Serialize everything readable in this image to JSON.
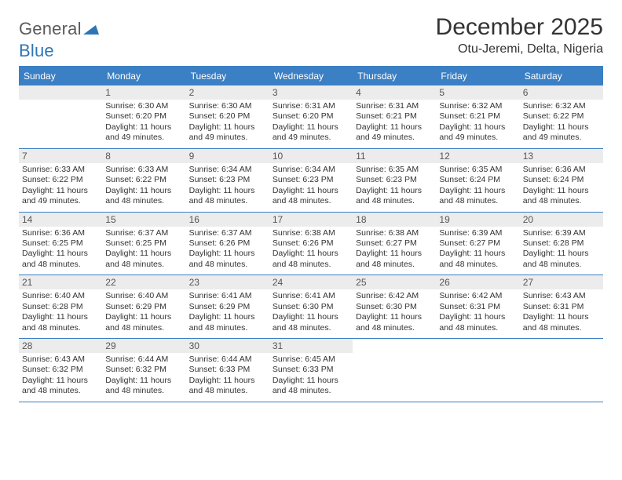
{
  "logo": {
    "word1": "General",
    "word2": "Blue"
  },
  "title": "December 2025",
  "location": "Otu-Jeremi, Delta, Nigeria",
  "colors": {
    "header_bg": "#3b7fc4",
    "header_text": "#ffffff",
    "rule": "#3b7fc4",
    "daynum_bg": "#ececec",
    "body_text": "#333333",
    "logo_gray": "#5a5a5a",
    "logo_blue": "#2e75b6",
    "page_bg": "#ffffff"
  },
  "typography": {
    "title_fontsize": 30,
    "location_fontsize": 16,
    "dow_fontsize": 12,
    "daynum_fontsize": 12,
    "body_fontsize": 10.5
  },
  "layout": {
    "columns": 7,
    "rows": 5
  },
  "days_of_week": [
    "Sunday",
    "Monday",
    "Tuesday",
    "Wednesday",
    "Thursday",
    "Friday",
    "Saturday"
  ],
  "weeks": [
    [
      {
        "n": "",
        "sunrise": "",
        "sunset": "",
        "daylight": ""
      },
      {
        "n": "1",
        "sunrise": "Sunrise: 6:30 AM",
        "sunset": "Sunset: 6:20 PM",
        "daylight": "Daylight: 11 hours and 49 minutes."
      },
      {
        "n": "2",
        "sunrise": "Sunrise: 6:30 AM",
        "sunset": "Sunset: 6:20 PM",
        "daylight": "Daylight: 11 hours and 49 minutes."
      },
      {
        "n": "3",
        "sunrise": "Sunrise: 6:31 AM",
        "sunset": "Sunset: 6:20 PM",
        "daylight": "Daylight: 11 hours and 49 minutes."
      },
      {
        "n": "4",
        "sunrise": "Sunrise: 6:31 AM",
        "sunset": "Sunset: 6:21 PM",
        "daylight": "Daylight: 11 hours and 49 minutes."
      },
      {
        "n": "5",
        "sunrise": "Sunrise: 6:32 AM",
        "sunset": "Sunset: 6:21 PM",
        "daylight": "Daylight: 11 hours and 49 minutes."
      },
      {
        "n": "6",
        "sunrise": "Sunrise: 6:32 AM",
        "sunset": "Sunset: 6:22 PM",
        "daylight": "Daylight: 11 hours and 49 minutes."
      }
    ],
    [
      {
        "n": "7",
        "sunrise": "Sunrise: 6:33 AM",
        "sunset": "Sunset: 6:22 PM",
        "daylight": "Daylight: 11 hours and 49 minutes."
      },
      {
        "n": "8",
        "sunrise": "Sunrise: 6:33 AM",
        "sunset": "Sunset: 6:22 PM",
        "daylight": "Daylight: 11 hours and 48 minutes."
      },
      {
        "n": "9",
        "sunrise": "Sunrise: 6:34 AM",
        "sunset": "Sunset: 6:23 PM",
        "daylight": "Daylight: 11 hours and 48 minutes."
      },
      {
        "n": "10",
        "sunrise": "Sunrise: 6:34 AM",
        "sunset": "Sunset: 6:23 PM",
        "daylight": "Daylight: 11 hours and 48 minutes."
      },
      {
        "n": "11",
        "sunrise": "Sunrise: 6:35 AM",
        "sunset": "Sunset: 6:23 PM",
        "daylight": "Daylight: 11 hours and 48 minutes."
      },
      {
        "n": "12",
        "sunrise": "Sunrise: 6:35 AM",
        "sunset": "Sunset: 6:24 PM",
        "daylight": "Daylight: 11 hours and 48 minutes."
      },
      {
        "n": "13",
        "sunrise": "Sunrise: 6:36 AM",
        "sunset": "Sunset: 6:24 PM",
        "daylight": "Daylight: 11 hours and 48 minutes."
      }
    ],
    [
      {
        "n": "14",
        "sunrise": "Sunrise: 6:36 AM",
        "sunset": "Sunset: 6:25 PM",
        "daylight": "Daylight: 11 hours and 48 minutes."
      },
      {
        "n": "15",
        "sunrise": "Sunrise: 6:37 AM",
        "sunset": "Sunset: 6:25 PM",
        "daylight": "Daylight: 11 hours and 48 minutes."
      },
      {
        "n": "16",
        "sunrise": "Sunrise: 6:37 AM",
        "sunset": "Sunset: 6:26 PM",
        "daylight": "Daylight: 11 hours and 48 minutes."
      },
      {
        "n": "17",
        "sunrise": "Sunrise: 6:38 AM",
        "sunset": "Sunset: 6:26 PM",
        "daylight": "Daylight: 11 hours and 48 minutes."
      },
      {
        "n": "18",
        "sunrise": "Sunrise: 6:38 AM",
        "sunset": "Sunset: 6:27 PM",
        "daylight": "Daylight: 11 hours and 48 minutes."
      },
      {
        "n": "19",
        "sunrise": "Sunrise: 6:39 AM",
        "sunset": "Sunset: 6:27 PM",
        "daylight": "Daylight: 11 hours and 48 minutes."
      },
      {
        "n": "20",
        "sunrise": "Sunrise: 6:39 AM",
        "sunset": "Sunset: 6:28 PM",
        "daylight": "Daylight: 11 hours and 48 minutes."
      }
    ],
    [
      {
        "n": "21",
        "sunrise": "Sunrise: 6:40 AM",
        "sunset": "Sunset: 6:28 PM",
        "daylight": "Daylight: 11 hours and 48 minutes."
      },
      {
        "n": "22",
        "sunrise": "Sunrise: 6:40 AM",
        "sunset": "Sunset: 6:29 PM",
        "daylight": "Daylight: 11 hours and 48 minutes."
      },
      {
        "n": "23",
        "sunrise": "Sunrise: 6:41 AM",
        "sunset": "Sunset: 6:29 PM",
        "daylight": "Daylight: 11 hours and 48 minutes."
      },
      {
        "n": "24",
        "sunrise": "Sunrise: 6:41 AM",
        "sunset": "Sunset: 6:30 PM",
        "daylight": "Daylight: 11 hours and 48 minutes."
      },
      {
        "n": "25",
        "sunrise": "Sunrise: 6:42 AM",
        "sunset": "Sunset: 6:30 PM",
        "daylight": "Daylight: 11 hours and 48 minutes."
      },
      {
        "n": "26",
        "sunrise": "Sunrise: 6:42 AM",
        "sunset": "Sunset: 6:31 PM",
        "daylight": "Daylight: 11 hours and 48 minutes."
      },
      {
        "n": "27",
        "sunrise": "Sunrise: 6:43 AM",
        "sunset": "Sunset: 6:31 PM",
        "daylight": "Daylight: 11 hours and 48 minutes."
      }
    ],
    [
      {
        "n": "28",
        "sunrise": "Sunrise: 6:43 AM",
        "sunset": "Sunset: 6:32 PM",
        "daylight": "Daylight: 11 hours and 48 minutes."
      },
      {
        "n": "29",
        "sunrise": "Sunrise: 6:44 AM",
        "sunset": "Sunset: 6:32 PM",
        "daylight": "Daylight: 11 hours and 48 minutes."
      },
      {
        "n": "30",
        "sunrise": "Sunrise: 6:44 AM",
        "sunset": "Sunset: 6:33 PM",
        "daylight": "Daylight: 11 hours and 48 minutes."
      },
      {
        "n": "31",
        "sunrise": "Sunrise: 6:45 AM",
        "sunset": "Sunset: 6:33 PM",
        "daylight": "Daylight: 11 hours and 48 minutes."
      },
      {
        "n": "",
        "sunrise": "",
        "sunset": "",
        "daylight": ""
      },
      {
        "n": "",
        "sunrise": "",
        "sunset": "",
        "daylight": ""
      },
      {
        "n": "",
        "sunrise": "",
        "sunset": "",
        "daylight": ""
      }
    ]
  ]
}
